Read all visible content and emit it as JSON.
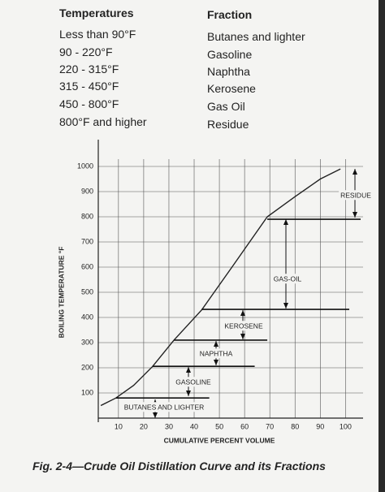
{
  "table": {
    "headers": [
      "Temperatures",
      "Fraction"
    ],
    "rows": [
      [
        "Less than 90°F",
        "Butanes and lighter"
      ],
      [
        "90 - 220°F",
        "Gasoline"
      ],
      [
        "220 - 315°F",
        "Naphtha"
      ],
      [
        "315 - 450°F",
        "Kerosene"
      ],
      [
        "450 - 800°F",
        "Gas Oil"
      ],
      [
        "800°F and higher",
        "Residue"
      ]
    ]
  },
  "chart_data": {
    "type": "line",
    "x": [
      3,
      9,
      16,
      23.5,
      32,
      43,
      55,
      69,
      80,
      90,
      98
    ],
    "values": [
      50,
      80,
      130,
      205,
      310,
      430,
      600,
      800,
      880,
      950,
      990
    ],
    "color": "#222222",
    "xlabel": "CUMULATIVE PERCENT VOLUME",
    "ylabel": "BOILING TEMPERATURE °F",
    "xlim": [
      2,
      106
    ],
    "ylim": [
      0,
      1100
    ],
    "xticks": [
      10,
      20,
      30,
      40,
      50,
      60,
      70,
      80,
      90,
      100
    ],
    "yticks": [
      100,
      200,
      300,
      400,
      500,
      600,
      700,
      800,
      900,
      1000
    ],
    "grid": true,
    "cut_lines": [
      {
        "y": 80,
        "x": [
          9,
          46
        ]
      },
      {
        "y": 206,
        "x": [
          23.5,
          64
        ]
      },
      {
        "y": 310,
        "x": [
          32,
          69
        ]
      },
      {
        "y": 432,
        "x": [
          43,
          101.5
        ]
      },
      {
        "y": 790,
        "x": [
          69,
          106
        ]
      }
    ],
    "annotations": [
      "BUTANES AND LIGHTER",
      "GASOLINE",
      "NAPHTHA",
      "KEROSENE",
      "GAS-OIL",
      "RESIDUE"
    ]
  },
  "caption": "Fig. 2-4—Crude Oil Distillation Curve and its Fractions"
}
